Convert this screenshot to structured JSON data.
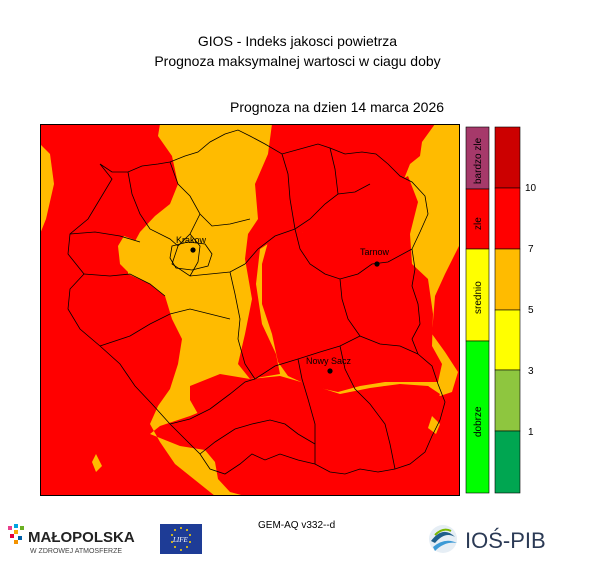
{
  "header": {
    "title": "GIOS - Indeks jakosci powietrza",
    "subtitle": "Prognoza maksymalnej wartosci w ciagu doby",
    "forecast_date": "Prognoza na dzien  14 marca 2026"
  },
  "map": {
    "cities": [
      {
        "name": "Krakow"
      },
      {
        "name": "Tarnow"
      },
      {
        "name": "Nowy Sacz"
      }
    ]
  },
  "legend": {
    "categories": [
      {
        "label": "bardzo zle",
        "color": "#a6396a"
      },
      {
        "label": "zle",
        "color": "#ff0000"
      },
      {
        "label": "srednio",
        "color": "#ffff00"
      },
      {
        "label": "dobrze",
        "color": "#00ff00"
      }
    ],
    "scale_colors": [
      "#cc0000",
      "#ff0000",
      "#ffbb00",
      "#ffff00",
      "#8ec63f",
      "#00a651"
    ],
    "scale_values": [
      "10",
      "7",
      "5",
      "3",
      "1"
    ]
  },
  "colors": {
    "bad": "#ff0000",
    "moderate": "#ffbb00"
  },
  "footer": {
    "model": "GEM-AQ v332--d",
    "logo_malopolska": "MAŁOPOLSKA",
    "logo_malopolska_sub": "W ZDROWEJ ATMOSFERZE",
    "logo_eu": "LIFE",
    "logo_ios": "IOŚ-PIB"
  }
}
